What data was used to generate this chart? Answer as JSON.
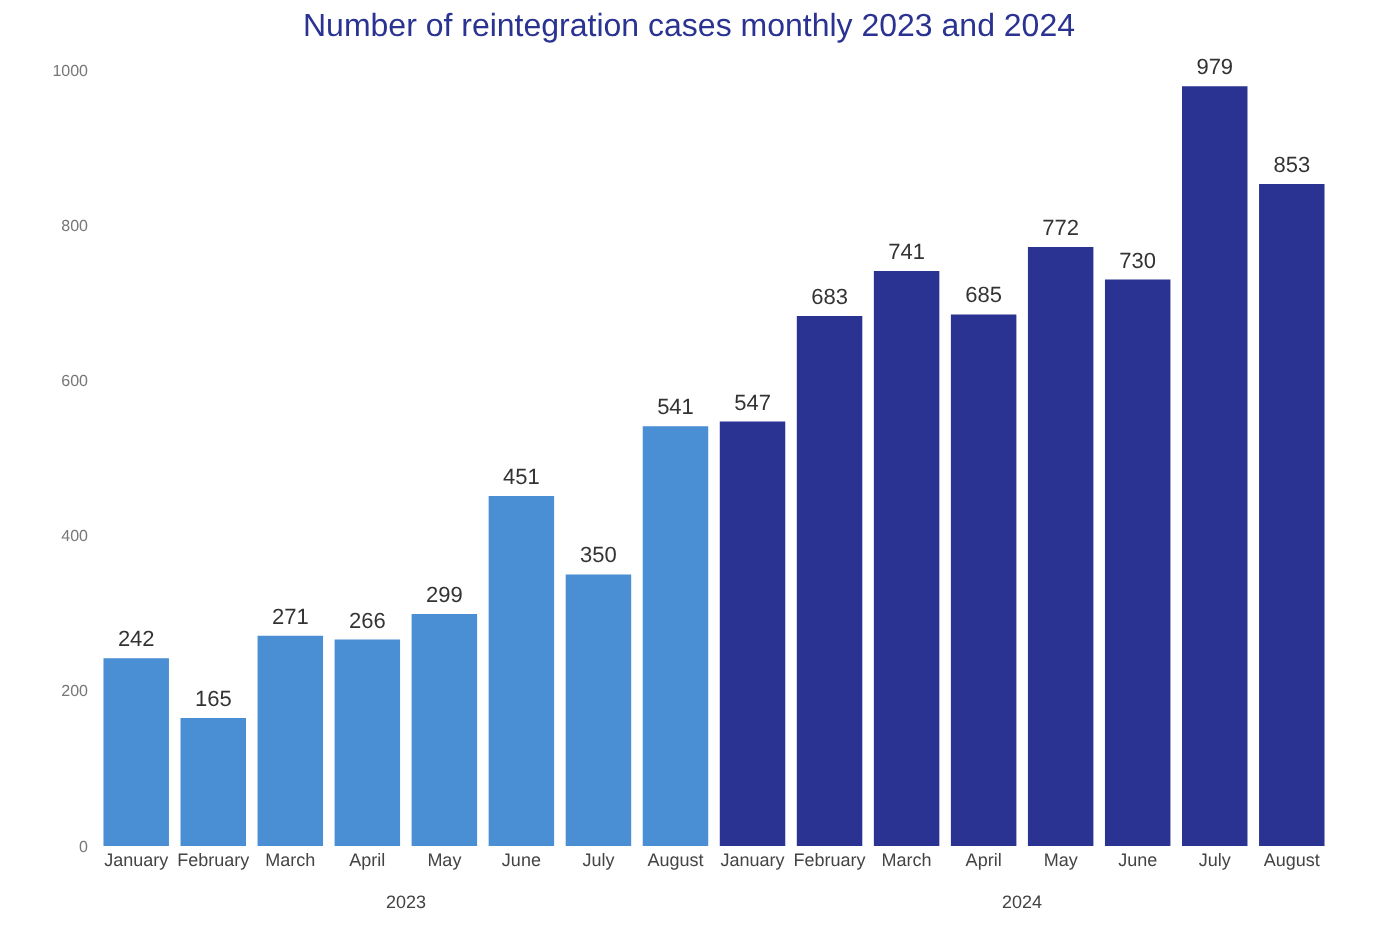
{
  "chart_data": {
    "type": "bar",
    "title": "Number of reintegration cases monthly 2023 and 2024",
    "categories": [
      "January",
      "February",
      "March",
      "April",
      "May",
      "June",
      "July",
      "August",
      "January",
      "February",
      "March",
      "April",
      "May",
      "June",
      "July",
      "August"
    ],
    "values": [
      242,
      165,
      271,
      266,
      299,
      451,
      350,
      541,
      547,
      683,
      741,
      685,
      772,
      730,
      979,
      853
    ],
    "colors": [
      "#4a8fd4",
      "#4a8fd4",
      "#4a8fd4",
      "#4a8fd4",
      "#4a8fd4",
      "#4a8fd4",
      "#4a8fd4",
      "#4a8fd4",
      "#2a3391",
      "#2a3391",
      "#2a3391",
      "#2a3391",
      "#2a3391",
      "#2a3391",
      "#2a3391",
      "#2a3391"
    ],
    "data_labels": true,
    "ylim": [
      0,
      1000
    ],
    "yticks": [
      0,
      200,
      400,
      600,
      800,
      1000
    ],
    "annotations": [
      "2023",
      "2024"
    ]
  }
}
